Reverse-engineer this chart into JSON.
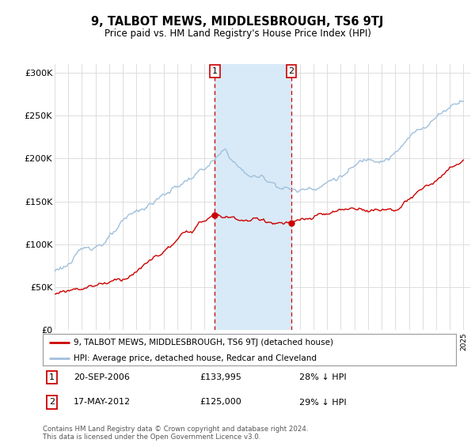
{
  "title": "9, TALBOT MEWS, MIDDLESBROUGH, TS6 9TJ",
  "subtitle": "Price paid vs. HM Land Registry's House Price Index (HPI)",
  "ylim": [
    0,
    310000
  ],
  "yticks": [
    0,
    50000,
    100000,
    150000,
    200000,
    250000,
    300000
  ],
  "ytick_labels": [
    "£0",
    "£50K",
    "£100K",
    "£150K",
    "£200K",
    "£250K",
    "£300K"
  ],
  "hpi_color": "#a0c0dc",
  "sale_color": "#cc0000",
  "vspan_color": "#d8eaf7",
  "vline_color": "#cc0000",
  "sale_x1": 2006.75,
  "sale_y1": 133995,
  "sale_x2": 2012.375,
  "sale_y2": 125000,
  "annotation1": {
    "label": "1",
    "date": "20-SEP-2006",
    "price": "£133,995",
    "pct": "28% ↓ HPI"
  },
  "annotation2": {
    "label": "2",
    "date": "17-MAY-2012",
    "price": "£125,000",
    "pct": "29% ↓ HPI"
  },
  "legend_sale": "9, TALBOT MEWS, MIDDLESBROUGH, TS6 9TJ (detached house)",
  "legend_hpi": "HPI: Average price, detached house, Redcar and Cleveland",
  "footer": "Contains HM Land Registry data © Crown copyright and database right 2024.\nThis data is licensed under the Open Government Licence v3.0.",
  "bg_color": "#ffffff",
  "grid_color": "#dddddd",
  "xmin": 1995,
  "xmax": 2025.5
}
